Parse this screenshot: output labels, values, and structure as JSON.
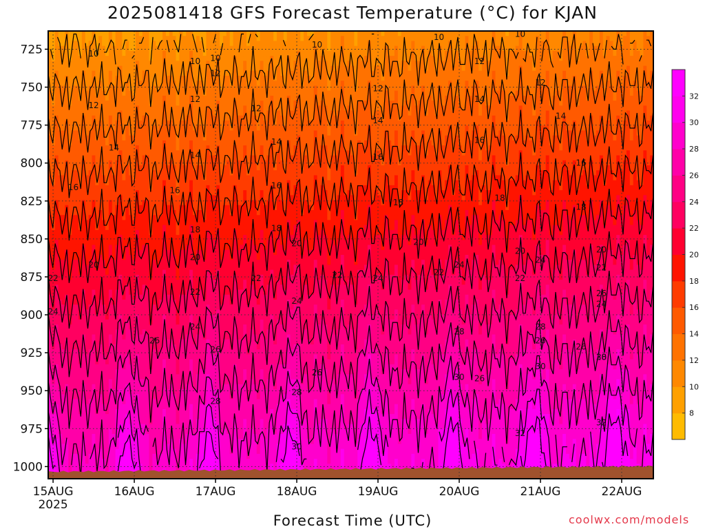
{
  "chart_data": {
    "type": "heatmap",
    "title": "2025081418 GFS Forecast Temperature (°C) for KJAN",
    "xlabel": "Forecast Time (UTC)",
    "ylabel": "",
    "x_ticks": [
      "15AUG",
      "16AUG",
      "17AUG",
      "18AUG",
      "19AUG",
      "20AUG",
      "21AUG",
      "22AUG"
    ],
    "x_tick_year": "2025",
    "y_ticks": [
      725,
      750,
      775,
      800,
      825,
      850,
      875,
      900,
      925,
      950,
      975,
      1000
    ],
    "y_axis": "pressure (hPa), inverted",
    "ylim": [
      1008,
      713
    ],
    "grid": true,
    "colorbar": {
      "ticks": [
        8,
        10,
        12,
        14,
        16,
        18,
        20,
        22,
        24,
        26,
        28,
        30,
        32
      ],
      "bins": [
        {
          "lo": 6,
          "hi": 8,
          "color": "#ffbb00"
        },
        {
          "lo": 8,
          "hi": 10,
          "color": "#ffa000"
        },
        {
          "lo": 10,
          "hi": 12,
          "color": "#ff8800"
        },
        {
          "lo": 12,
          "hi": 14,
          "color": "#ff7200"
        },
        {
          "lo": 14,
          "hi": 16,
          "color": "#ff5a00"
        },
        {
          "lo": 16,
          "hi": 18,
          "color": "#ff3c00"
        },
        {
          "lo": 18,
          "hi": 20,
          "color": "#ff1400"
        },
        {
          "lo": 20,
          "hi": 22,
          "color": "#ff0030"
        },
        {
          "lo": 22,
          "hi": 24,
          "color": "#ff0060"
        },
        {
          "lo": 24,
          "hi": 26,
          "color": "#ff0084"
        },
        {
          "lo": 26,
          "hi": 28,
          "color": "#ff00a8"
        },
        {
          "lo": 28,
          "hi": 30,
          "color": "#ff00cc"
        },
        {
          "lo": 30,
          "hi": 32,
          "color": "#ff00ee"
        },
        {
          "lo": 32,
          "hi": 34,
          "color": "#ff00ff"
        }
      ]
    },
    "contour_levels": [
      10,
      12,
      14,
      16,
      18,
      20,
      22,
      24,
      26,
      28,
      30,
      32
    ],
    "contour_labels": [
      {
        "day": 14.75,
        "p": 715,
        "t": "10"
      },
      {
        "day": 15.5,
        "p": 728,
        "t": "10"
      },
      {
        "day": 16.75,
        "p": 733,
        "t": "10"
      },
      {
        "day": 17.0,
        "p": 731,
        "t": "10"
      },
      {
        "day": 18.25,
        "p": 722,
        "t": "10"
      },
      {
        "day": 19.75,
        "p": 717,
        "t": "10"
      },
      {
        "day": 20.75,
        "p": 715,
        "t": "10"
      },
      {
        "day": 15.5,
        "p": 762,
        "t": "12"
      },
      {
        "day": 16.75,
        "p": 758,
        "t": "12"
      },
      {
        "day": 17.0,
        "p": 741,
        "t": "12"
      },
      {
        "day": 17.5,
        "p": 764,
        "t": "12"
      },
      {
        "day": 19.0,
        "p": 751,
        "t": "12"
      },
      {
        "day": 20.25,
        "p": 733,
        "t": "12"
      },
      {
        "day": 21.0,
        "p": 747,
        "t": "12"
      },
      {
        "day": 15.75,
        "p": 790,
        "t": "14"
      },
      {
        "day": 16.75,
        "p": 795,
        "t": "14"
      },
      {
        "day": 17.75,
        "p": 786,
        "t": "14"
      },
      {
        "day": 19.0,
        "p": 772,
        "t": "14"
      },
      {
        "day": 20.25,
        "p": 758,
        "t": "14"
      },
      {
        "day": 21.25,
        "p": 769,
        "t": "14"
      },
      {
        "day": 15.25,
        "p": 816,
        "t": "16"
      },
      {
        "day": 16.5,
        "p": 818,
        "t": "16"
      },
      {
        "day": 17.75,
        "p": 815,
        "t": "16"
      },
      {
        "day": 19.0,
        "p": 796,
        "t": "16"
      },
      {
        "day": 20.25,
        "p": 785,
        "t": "16"
      },
      {
        "day": 21.5,
        "p": 800,
        "t": "16"
      },
      {
        "day": 16.75,
        "p": 844,
        "t": "18"
      },
      {
        "day": 17.75,
        "p": 843,
        "t": "18"
      },
      {
        "day": 19.25,
        "p": 826,
        "t": "18"
      },
      {
        "day": 20.5,
        "p": 823,
        "t": "18"
      },
      {
        "day": 21.5,
        "p": 829,
        "t": "18"
      },
      {
        "day": 15.5,
        "p": 867,
        "t": "20"
      },
      {
        "day": 16.75,
        "p": 862,
        "t": "20"
      },
      {
        "day": 18.0,
        "p": 853,
        "t": "20"
      },
      {
        "day": 19.5,
        "p": 852,
        "t": "20"
      },
      {
        "day": 20.75,
        "p": 858,
        "t": "20"
      },
      {
        "day": 21.75,
        "p": 857,
        "t": "20"
      },
      {
        "day": 15.0,
        "p": 876,
        "t": "22"
      },
      {
        "day": 16.75,
        "p": 885,
        "t": "22"
      },
      {
        "day": 17.5,
        "p": 876,
        "t": "22"
      },
      {
        "day": 18.5,
        "p": 874,
        "t": "22"
      },
      {
        "day": 19.75,
        "p": 872,
        "t": "22"
      },
      {
        "day": 20.75,
        "p": 876,
        "t": "22"
      },
      {
        "day": 21.75,
        "p": 869,
        "t": "22"
      },
      {
        "day": 15.0,
        "p": 898,
        "t": "24"
      },
      {
        "day": 16.75,
        "p": 908,
        "t": "24"
      },
      {
        "day": 18.0,
        "p": 891,
        "t": "24"
      },
      {
        "day": 19.0,
        "p": 876,
        "t": "24"
      },
      {
        "day": 20.0,
        "p": 867,
        "t": "24"
      },
      {
        "day": 21.0,
        "p": 864,
        "t": "24"
      },
      {
        "day": 21.75,
        "p": 893,
        "t": "24"
      },
      {
        "day": 16.25,
        "p": 917,
        "t": "26"
      },
      {
        "day": 17.0,
        "p": 923,
        "t": "26"
      },
      {
        "day": 18.25,
        "p": 938,
        "t": "26"
      },
      {
        "day": 20.25,
        "p": 942,
        "t": "26"
      },
      {
        "day": 21.0,
        "p": 917,
        "t": "26"
      },
      {
        "day": 21.5,
        "p": 921,
        "t": "26"
      },
      {
        "day": 21.75,
        "p": 886,
        "t": "26"
      },
      {
        "day": 17.0,
        "p": 957,
        "t": "28"
      },
      {
        "day": 18.0,
        "p": 951,
        "t": "28"
      },
      {
        "day": 20.0,
        "p": 911,
        "t": "28"
      },
      {
        "day": 21.0,
        "p": 908,
        "t": "28"
      },
      {
        "day": 21.75,
        "p": 928,
        "t": "28"
      },
      {
        "day": 18.0,
        "p": 987,
        "t": "30"
      },
      {
        "day": 20.0,
        "p": 941,
        "t": "30"
      },
      {
        "day": 21.0,
        "p": 934,
        "t": "30"
      },
      {
        "day": 21.75,
        "p": 928,
        "t": "30"
      },
      {
        "day": 20.75,
        "p": 978,
        "t": "32"
      },
      {
        "day": 21.75,
        "p": 971,
        "t": "32"
      }
    ]
  },
  "footer": {
    "watermark": "coolwx.com/models"
  }
}
